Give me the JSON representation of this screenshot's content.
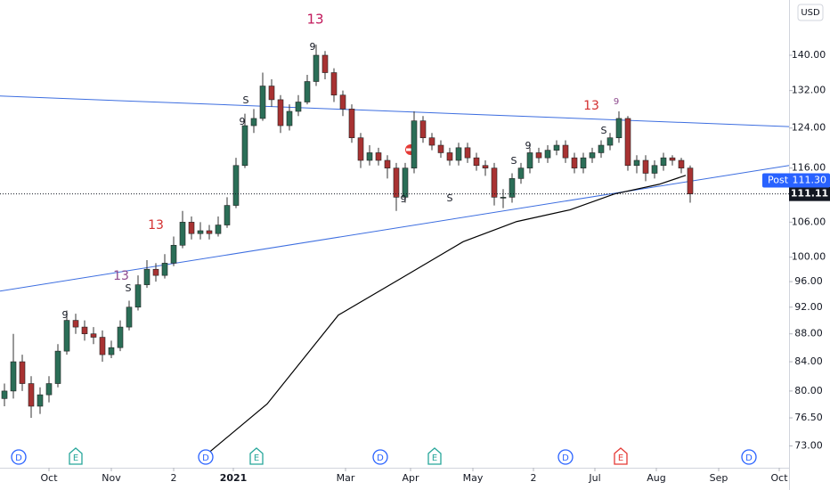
{
  "chart_data": {
    "type": "candlestick",
    "log_y": true,
    "currency": "USD",
    "xlim": [
      -0.5,
      88.1
    ],
    "ylim": [
      70.4,
      153.5
    ],
    "yticks": [
      {
        "value": 73,
        "label": "73.00"
      },
      {
        "value": 76.5,
        "label": "76.50"
      },
      {
        "value": 80,
        "label": "80.00"
      },
      {
        "value": 84,
        "label": "84.00"
      },
      {
        "value": 88,
        "label": "88.00"
      },
      {
        "value": 92,
        "label": "92.00"
      },
      {
        "value": 96,
        "label": "96.00"
      },
      {
        "value": 100,
        "label": "100.00"
      },
      {
        "value": 106,
        "label": "106.00"
      },
      {
        "value": 116,
        "label": "116.00"
      },
      {
        "value": 124,
        "label": "124.00"
      },
      {
        "value": 132,
        "label": "132.00"
      },
      {
        "value": 140,
        "label": "140.00"
      }
    ],
    "xticks": [
      {
        "value": 5,
        "label": "Oct"
      },
      {
        "value": 12,
        "label": "Nov"
      },
      {
        "value": 19,
        "label": "2"
      },
      {
        "value": 25.7,
        "label": "2021"
      },
      {
        "value": 38.3,
        "label": "Mar"
      },
      {
        "value": 45.6,
        "label": "Apr"
      },
      {
        "value": 52.6,
        "label": "May"
      },
      {
        "value": 59.4,
        "label": "2"
      },
      {
        "value": 66.3,
        "label": "Jul"
      },
      {
        "value": 73.2,
        "label": "Aug"
      },
      {
        "value": 80.2,
        "label": "Sep"
      },
      {
        "value": 87,
        "label": "Oct"
      }
    ],
    "up_color": "#2b6e57",
    "down_color": "#a83232",
    "open": [
      79,
      80,
      84,
      81,
      78,
      79.5,
      81,
      85.5,
      90,
      89,
      88,
      87.5,
      85,
      86,
      89,
      92,
      95.5,
      98,
      97,
      99,
      102,
      106,
      104,
      104.5,
      104,
      105.5,
      109,
      116.5,
      124.5,
      126,
      133,
      130,
      124.5,
      127.5,
      129.5,
      134,
      140,
      136,
      131,
      128,
      122,
      117.5,
      119,
      117.5,
      116,
      110.5,
      116,
      125.5,
      122,
      120.5,
      119,
      117.5,
      120,
      118,
      116.5,
      116,
      110.5,
      110.5,
      114,
      116,
      119,
      118,
      119.5,
      120.5,
      118,
      116,
      118,
      119,
      120.5,
      122,
      126,
      116.5,
      117.5,
      115,
      116.5,
      118,
      117.5,
      116
    ],
    "high": [
      81,
      88,
      85,
      82,
      80.5,
      82,
      86.5,
      91.5,
      91,
      90,
      89,
      88.5,
      87,
      90,
      93,
      97,
      99.5,
      99,
      100.5,
      103.5,
      108,
      107,
      106,
      105.5,
      107,
      110.5,
      118,
      127,
      128,
      136,
      134.5,
      131,
      129,
      131,
      135.5,
      142.5,
      141,
      137,
      132,
      129,
      123,
      120.5,
      120,
      118.5,
      117,
      117,
      127.5,
      126.5,
      123,
      121.5,
      120,
      121,
      121,
      119,
      117.5,
      117,
      112,
      115,
      117,
      120,
      120,
      120.5,
      121.5,
      121.5,
      119,
      119,
      120,
      121.5,
      123,
      127.5,
      126.5,
      118.5,
      118.5,
      117.5,
      119,
      118.5,
      118,
      116.5
    ],
    "low": [
      78,
      79,
      80,
      76.5,
      77,
      78.5,
      80.5,
      85,
      88,
      87,
      86.5,
      84,
      84.5,
      85.5,
      88.5,
      91.5,
      95,
      96,
      96.5,
      98.5,
      101.5,
      103,
      103,
      103,
      103.5,
      105,
      108.5,
      116,
      123,
      125.5,
      128.5,
      123,
      123.5,
      126.5,
      129,
      133,
      134.5,
      129.5,
      126.5,
      121,
      116,
      116.5,
      116.5,
      114,
      108,
      109.5,
      115,
      121,
      119.5,
      118,
      116.5,
      116.5,
      117,
      115.5,
      114.5,
      109,
      108.5,
      109.5,
      113,
      115,
      117,
      117,
      118.5,
      117,
      115,
      115,
      117,
      118,
      119.5,
      121,
      115.5,
      115,
      113.5,
      114,
      115.5,
      116.5,
      115,
      109.5
    ],
    "close": [
      80,
      84,
      81,
      78,
      79.5,
      81,
      85.5,
      90,
      89,
      88,
      87.5,
      85,
      86,
      89,
      92,
      95.5,
      98,
      97,
      99,
      102,
      106,
      104,
      104.5,
      104,
      105.5,
      109,
      116.5,
      124.5,
      126,
      133,
      130,
      124.5,
      127.5,
      129.5,
      134,
      140,
      136,
      131,
      128,
      122,
      117.5,
      119,
      117.5,
      116,
      110.5,
      116,
      125.5,
      122,
      120.5,
      119,
      117.5,
      120,
      118,
      116.5,
      116,
      110.5,
      110.5,
      114,
      116,
      119,
      118,
      119.5,
      120.5,
      118,
      116,
      118,
      119,
      120.5,
      122,
      126,
      116.5,
      117.5,
      115,
      116.5,
      118,
      117.5,
      116,
      111.11
    ],
    "last_price": 111.11,
    "post": {
      "label": "Post",
      "value": 111.3,
      "value_label": "111.30"
    },
    "trendlines": [
      {
        "color": "#3d6ee0",
        "x": [
          -0.5,
          88.1
        ],
        "y": [
          130.8,
          124.3
        ]
      },
      {
        "color": "#3d6ee0",
        "x": [
          -0.5,
          88.1
        ],
        "y": [
          94.5,
          116.5
        ]
      }
    ],
    "moving_average": {
      "color": "#000000",
      "x": [
        22.5,
        29.5,
        37.5,
        44.5,
        51.5,
        57.5,
        63.5,
        68.5,
        73.5,
        76.5
      ],
      "values": [
        71.8,
        78.3,
        90.8,
        96.5,
        102.6,
        106.1,
        108.2,
        111.1,
        112.9,
        114.6
      ]
    },
    "annotations": [
      {
        "text": "13",
        "color": "#c2185b"
      },
      {
        "text": "9",
        "color": "#131722"
      },
      {
        "text": "S",
        "color": "#131722"
      },
      {
        "text": "9",
        "color": "#131722"
      },
      {
        "text": "13",
        "color": "#d32f2f"
      },
      {
        "text": "13",
        "color": "#8e4a8e"
      },
      {
        "text": "S",
        "color": "#131722"
      },
      {
        "text": "9",
        "color": "#131722"
      },
      {
        "text": "13",
        "color": "#d32f2f"
      },
      {
        "text": "9",
        "color": "#8e4a8e"
      },
      {
        "text": "S",
        "color": "#131722"
      },
      {
        "text": "9",
        "color": "#131722"
      },
      {
        "text": "S",
        "color": "#131722"
      },
      {
        "text": "9",
        "color": "#131722"
      },
      {
        "text": "S",
        "color": "#131722"
      }
    ],
    "events": [
      {
        "text": "D",
        "color": "#2962ff"
      },
      {
        "text": "E",
        "color": "#26a69a"
      },
      {
        "text": "D",
        "color": "#2962ff"
      },
      {
        "text": "E",
        "color": "#26a69a"
      },
      {
        "text": "D",
        "color": "#2962ff"
      },
      {
        "text": "E",
        "color": "#26a69a"
      },
      {
        "text": "D",
        "color": "#2962ff"
      },
      {
        "text": "E",
        "color": "#e53935"
      },
      {
        "text": "D",
        "color": "#2962ff"
      }
    ]
  }
}
